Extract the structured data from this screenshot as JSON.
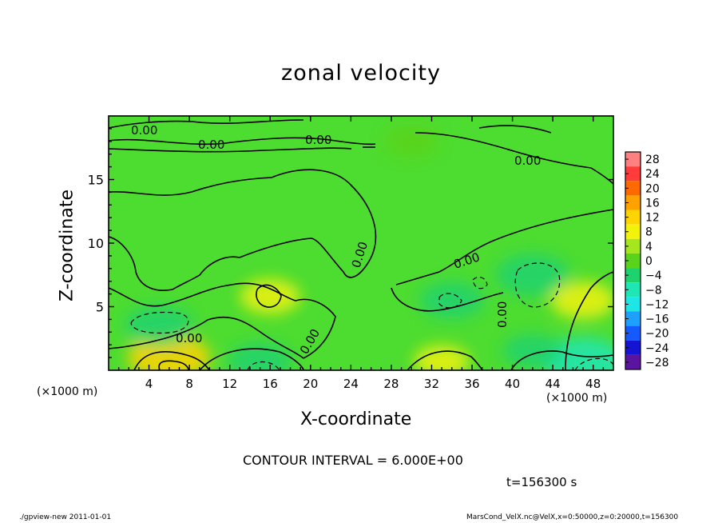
{
  "chart_data": {
    "type": "heatmap",
    "title": "zonal velocity",
    "xlabel": "X-coordinate",
    "ylabel": "Z-coordinate",
    "x_unit_label": "(×1000 m)",
    "y_unit_label": "(×1000 m)",
    "xlim": [
      0,
      50
    ],
    "ylim": [
      0,
      20
    ],
    "x_ticks": [
      4,
      8,
      12,
      16,
      20,
      24,
      28,
      32,
      36,
      40,
      44,
      48
    ],
    "y_ticks": [
      5,
      10,
      15
    ],
    "colorbar": {
      "levels": [
        28,
        24,
        20,
        16,
        12,
        8,
        4,
        0,
        -4,
        -8,
        -12,
        -16,
        -20,
        -24,
        -28
      ],
      "colors": [
        "#ff8080",
        "#ff3b3b",
        "#ff6a00",
        "#ffa200",
        "#ffd400",
        "#f2f20a",
        "#a6e61e",
        "#5ad41a",
        "#1ed26e",
        "#1ee6b4",
        "#1ee6e6",
        "#1ea0ff",
        "#145aff",
        "#1414d2",
        "#5a14a0"
      ]
    },
    "contour_interval_label": "CONTOUR INTERVAL = 6.000E+00",
    "contour_labels": [
      "0.00",
      "0.00",
      "0.00",
      "0.00",
      "0.00",
      "0.00",
      "0.00",
      "0.00",
      "0.00"
    ],
    "time_label": "t=156300 s",
    "field_blobs": [
      {
        "x": 6,
        "z": 1,
        "value": 10
      },
      {
        "x": 16,
        "z": 5.8,
        "value": 5
      },
      {
        "x": 47,
        "z": 5.5,
        "value": 6
      },
      {
        "x": 33,
        "z": 0.7,
        "value": 4
      },
      {
        "x": 42,
        "z": 7.5,
        "value": -8
      },
      {
        "x": 5,
        "z": 3.5,
        "value": -7
      },
      {
        "x": 34,
        "z": 5.5,
        "value": -6
      },
      {
        "x": 15,
        "z": 0.7,
        "value": -6
      },
      {
        "x": 47,
        "z": 0.7,
        "value": -10
      },
      {
        "x": 42,
        "z": 1.5,
        "value": -5
      },
      {
        "x": 30,
        "z": 18,
        "value": -4
      }
    ]
  },
  "footer": {
    "left": "./gpview-new   2011-01-01",
    "right": "MarsCond_VelX.nc@VelX,x=0:50000,z=0:20000,t=156300"
  }
}
